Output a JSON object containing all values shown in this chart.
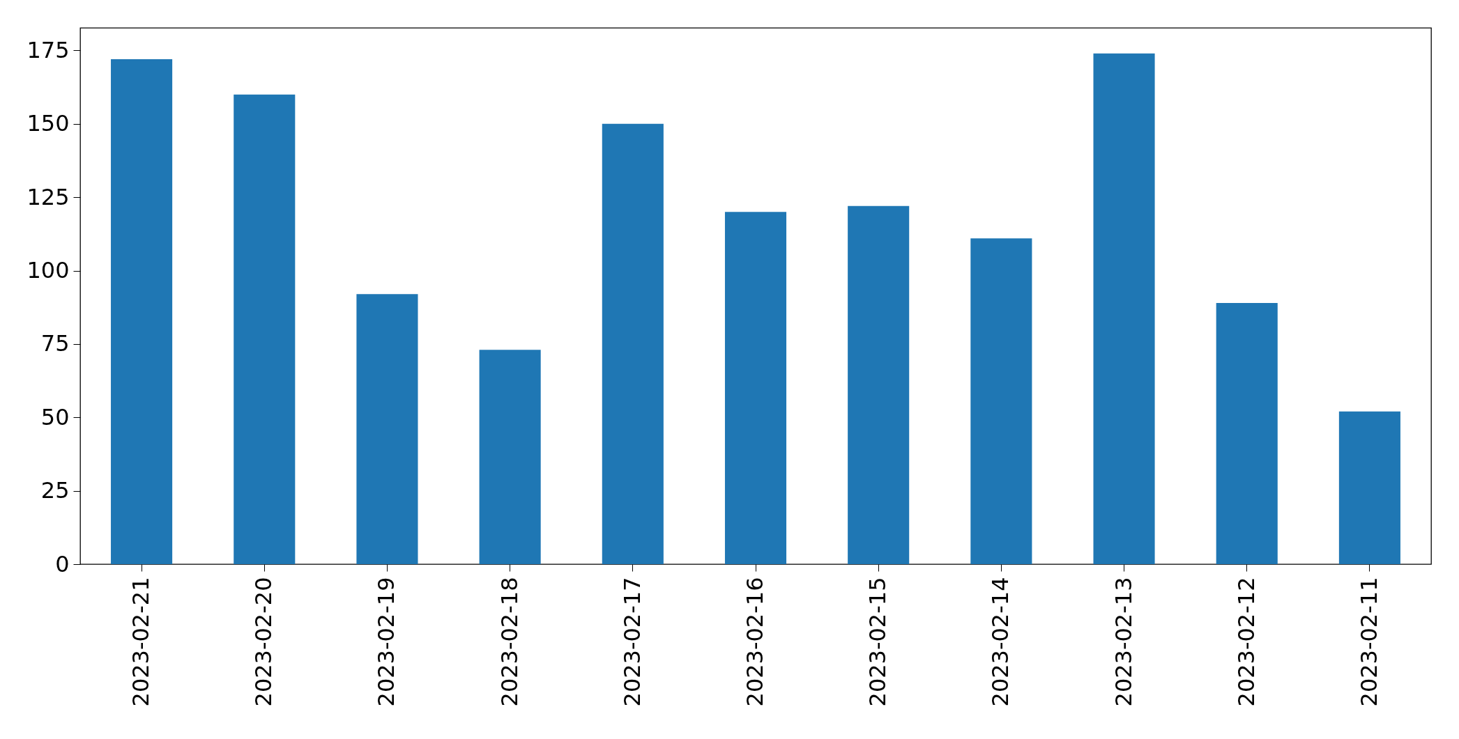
{
  "chart_data": {
    "type": "bar",
    "categories": [
      "2023-02-21",
      "2023-02-20",
      "2023-02-19",
      "2023-02-18",
      "2023-02-17",
      "2023-02-16",
      "2023-02-15",
      "2023-02-14",
      "2023-02-13",
      "2023-02-12",
      "2023-02-11"
    ],
    "values": [
      172,
      160,
      92,
      73,
      150,
      120,
      122,
      111,
      174,
      89,
      52
    ],
    "color": "#1f77b4",
    "ylim": [
      0,
      182.7
    ],
    "yticks": [
      0,
      25,
      50,
      75,
      100,
      125,
      150,
      175
    ],
    "grid": false
  }
}
